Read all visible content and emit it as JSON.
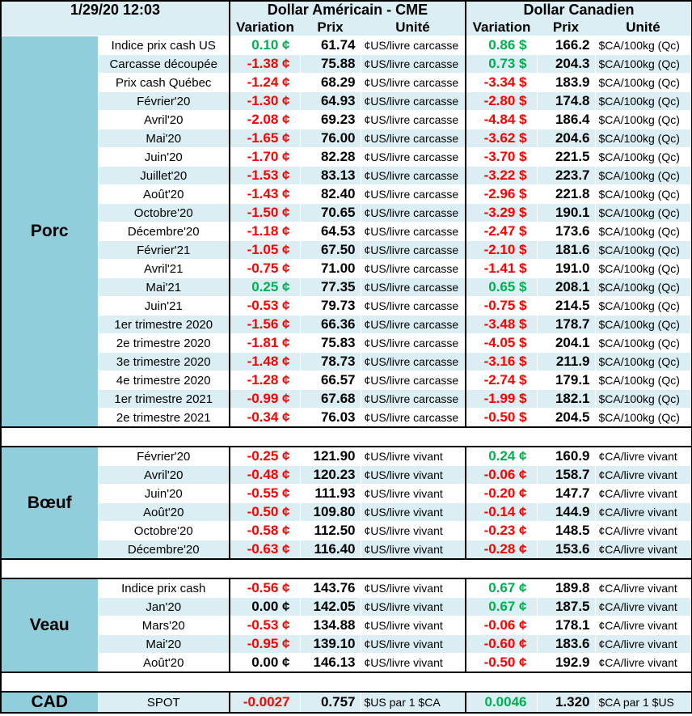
{
  "header": {
    "timestamp": "1/29/20 12:03",
    "us_title": "Dollar Américain - CME",
    "ca_title": "Dollar Canadien",
    "columns": [
      "Variation",
      "Prix",
      "Unité",
      "Variation",
      "Prix",
      "Unité"
    ]
  },
  "sections": [
    {
      "name": "Porc",
      "rows": [
        [
          "Indice prix cash US",
          "0.10 ¢",
          "61.74",
          "¢US/livre carcasse",
          "0.86 $",
          "166.2",
          "$CA/100kg (Qc)"
        ],
        [
          "Carcasse découpée",
          "-1.38 ¢",
          "75.88",
          "¢US/livre carcasse",
          "0.73 $",
          "204.3",
          "$CA/100kg (Qc)"
        ],
        [
          "Prix cash Québec",
          "-1.24 ¢",
          "68.29",
          "¢US/livre carcasse",
          "-3.34 $",
          "183.9",
          "$CA/100kg (Qc)"
        ],
        [
          "Février'20",
          "-1.30 ¢",
          "64.93",
          "¢US/livre carcasse",
          "-2.80 $",
          "174.8",
          "$CA/100kg (Qc)"
        ],
        [
          "Avril'20",
          "-2.08 ¢",
          "69.23",
          "¢US/livre carcasse",
          "-4.84 $",
          "186.4",
          "$CA/100kg (Qc)"
        ],
        [
          "Mai'20",
          "-1.65 ¢",
          "76.00",
          "¢US/livre carcasse",
          "-3.62 $",
          "204.6",
          "$CA/100kg (Qc)"
        ],
        [
          "Juin'20",
          "-1.70 ¢",
          "82.28",
          "¢US/livre carcasse",
          "-3.70 $",
          "221.5",
          "$CA/100kg (Qc)"
        ],
        [
          "Juillet'20",
          "-1.53 ¢",
          "83.13",
          "¢US/livre carcasse",
          "-3.22 $",
          "223.7",
          "$CA/100kg (Qc)"
        ],
        [
          "Août'20",
          "-1.43 ¢",
          "82.40",
          "¢US/livre carcasse",
          "-2.96 $",
          "221.8",
          "$CA/100kg (Qc)"
        ],
        [
          "Octobre'20",
          "-1.50 ¢",
          "70.65",
          "¢US/livre carcasse",
          "-3.29 $",
          "190.1",
          "$CA/100kg (Qc)"
        ],
        [
          "Décembre'20",
          "-1.18 ¢",
          "64.53",
          "¢US/livre carcasse",
          "-2.47 $",
          "173.6",
          "$CA/100kg (Qc)"
        ],
        [
          "Février'21",
          "-1.05 ¢",
          "67.50",
          "¢US/livre carcasse",
          "-2.10 $",
          "181.6",
          "$CA/100kg (Qc)"
        ],
        [
          "Avril'21",
          "-0.75 ¢",
          "71.00",
          "¢US/livre carcasse",
          "-1.41 $",
          "191.0",
          "$CA/100kg (Qc)"
        ],
        [
          "Mai'21",
          "0.25 ¢",
          "77.35",
          "¢US/livre carcasse",
          "0.65 $",
          "208.1",
          "$CA/100kg (Qc)"
        ],
        [
          "Juin'21",
          "-0.53 ¢",
          "79.73",
          "¢US/livre carcasse",
          "-0.75 $",
          "214.5",
          "$CA/100kg (Qc)"
        ],
        [
          "1er trimestre 2020",
          "-1.56 ¢",
          "66.36",
          "¢US/livre carcasse",
          "-3.48 $",
          "178.7",
          "$CA/100kg (Qc)"
        ],
        [
          "2e trimestre 2020",
          "-1.81 ¢",
          "75.83",
          "¢US/livre carcasse",
          "-4.05 $",
          "204.1",
          "$CA/100kg (Qc)"
        ],
        [
          "3e trimestre 2020",
          "-1.48 ¢",
          "78.73",
          "¢US/livre carcasse",
          "-3.16 $",
          "211.9",
          "$CA/100kg (Qc)"
        ],
        [
          "4e trimestre 2020",
          "-1.28 ¢",
          "66.57",
          "¢US/livre carcasse",
          "-2.74 $",
          "179.1",
          "$CA/100kg (Qc)"
        ],
        [
          "1er trimestre 2021",
          "-0.99 ¢",
          "67.68",
          "¢US/livre carcasse",
          "-1.99 $",
          "182.1",
          "$CA/100kg (Qc)"
        ],
        [
          "2e trimestre 2021",
          "-0.34 ¢",
          "76.03",
          "¢US/livre carcasse",
          "-0.50 $",
          "204.5",
          "$CA/100kg (Qc)"
        ]
      ]
    },
    {
      "name": "Bœuf",
      "rows": [
        [
          "Février'20",
          "-0.25 ¢",
          "121.90",
          "¢US/livre vivant",
          "0.24 ¢",
          "160.9",
          "¢CA/livre vivant"
        ],
        [
          "Avril'20",
          "-0.48 ¢",
          "120.23",
          "¢US/livre vivant",
          "-0.06 ¢",
          "158.7",
          "¢CA/livre vivant"
        ],
        [
          "Juin'20",
          "-0.55 ¢",
          "111.93",
          "¢US/livre vivant",
          "-0.20 ¢",
          "147.7",
          "¢CA/livre vivant"
        ],
        [
          "Août'20",
          "-0.50 ¢",
          "109.80",
          "¢US/livre vivant",
          "-0.14 ¢",
          "144.9",
          "¢CA/livre vivant"
        ],
        [
          "Octobre'20",
          "-0.58 ¢",
          "112.50",
          "¢US/livre vivant",
          "-0.23 ¢",
          "148.5",
          "¢CA/livre vivant"
        ],
        [
          "Décembre'20",
          "-0.63 ¢",
          "116.40",
          "¢US/livre vivant",
          "-0.28 ¢",
          "153.6",
          "¢CA/livre vivant"
        ]
      ]
    },
    {
      "name": "Veau",
      "rows": [
        [
          "Indice prix cash",
          "-0.56 ¢",
          "143.76",
          "¢US/livre vivant",
          "0.67 ¢",
          "189.8",
          "¢CA/livre vivant"
        ],
        [
          "Jan'20",
          "0.00 ¢",
          "142.05",
          "¢US/livre vivant",
          "0.67 ¢",
          "187.5",
          "¢CA/livre vivant"
        ],
        [
          "Mars'20",
          "-0.53 ¢",
          "134.88",
          "¢US/livre vivant",
          "-0.06 ¢",
          "178.1",
          "¢CA/livre vivant"
        ],
        [
          "Mai'20",
          "-0.95 ¢",
          "139.10",
          "¢US/livre vivant",
          "-0.60 ¢",
          "183.6",
          "¢CA/livre vivant"
        ],
        [
          "Août'20",
          "0.00 ¢",
          "146.13",
          "¢US/livre vivant",
          "-0.50 ¢",
          "192.9",
          "¢CA/livre vivant"
        ]
      ]
    },
    {
      "name": "CAD",
      "rows": [
        [
          "SPOT",
          "-0.0027",
          "0.757",
          "$US par 1 $CA",
          "0.0046",
          "1.320",
          "$CA par 1 $US"
        ]
      ]
    }
  ]
}
